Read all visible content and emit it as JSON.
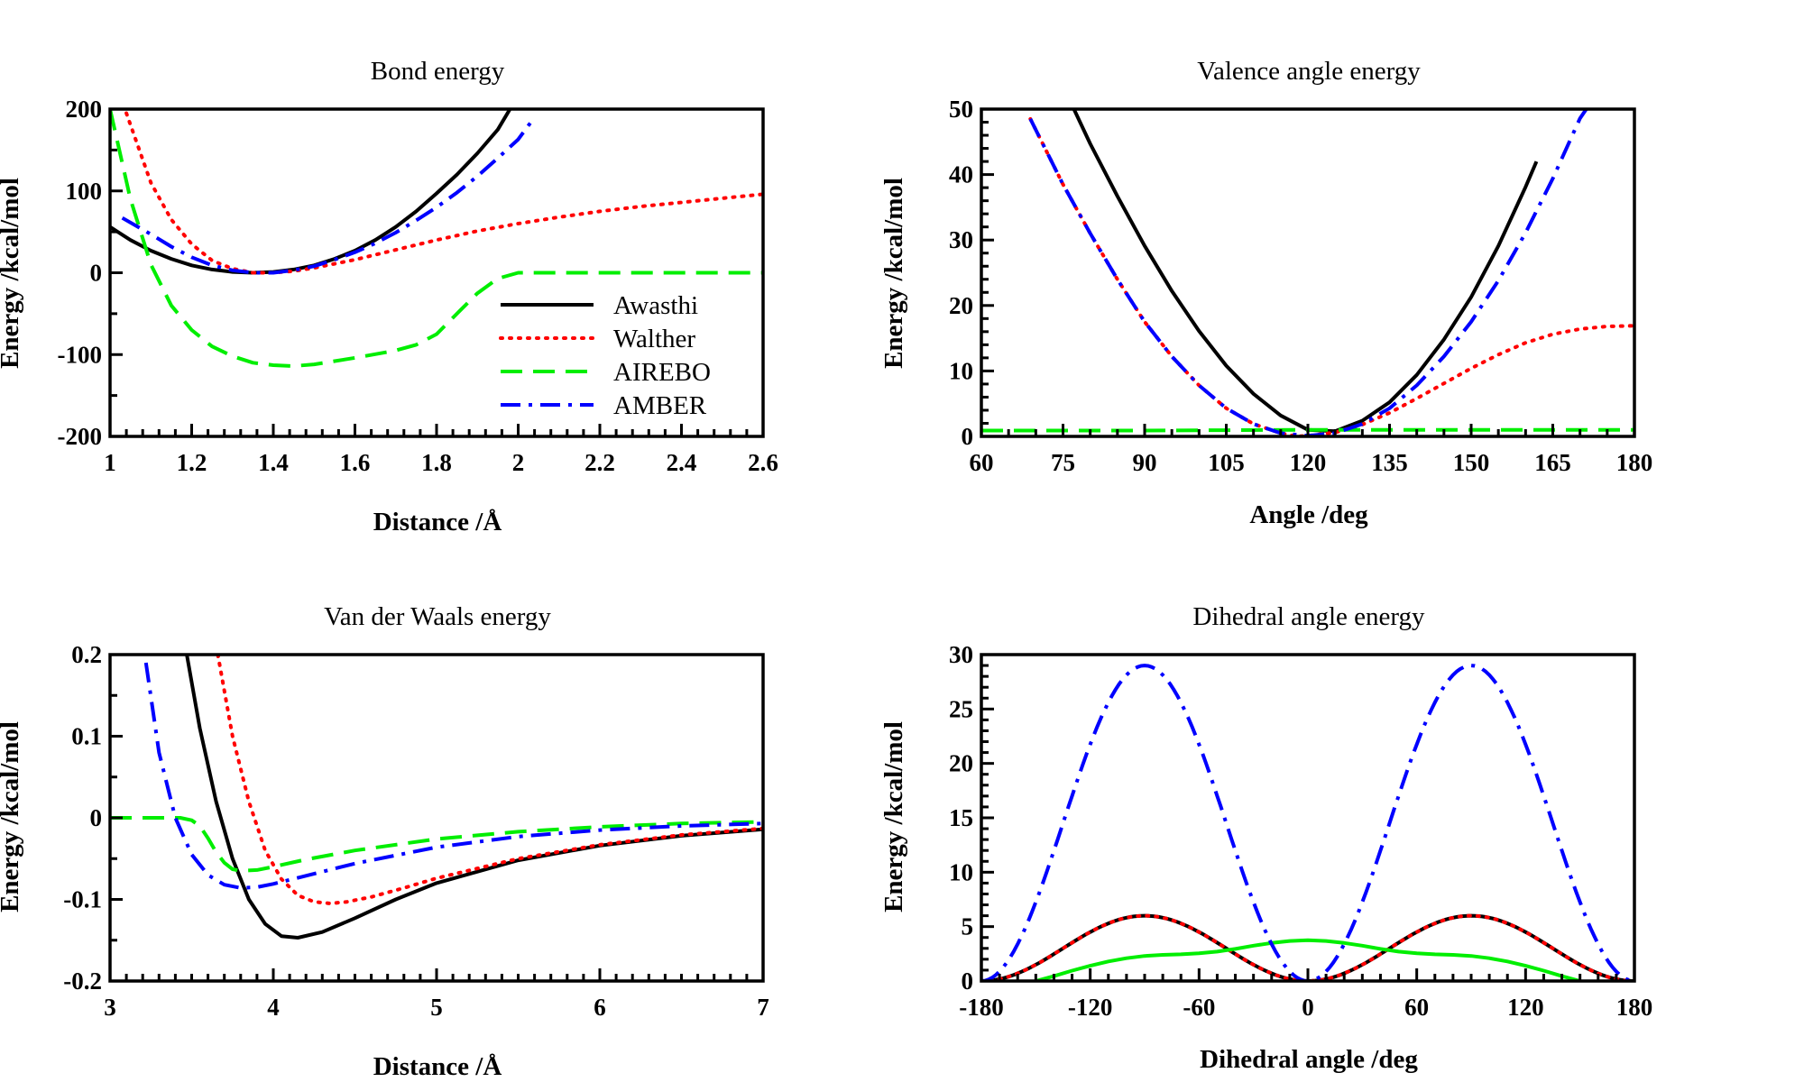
{
  "chart_data": [
    {
      "id": "bond",
      "type": "line",
      "title": "Bond energy",
      "xlabel": "Distance /Å",
      "ylabel": "Energy /kcal/mol",
      "xlim": [
        1,
        2.6
      ],
      "ylim": [
        -200,
        200
      ],
      "xticks": [
        "1",
        "1.2",
        "1.4",
        "1.6",
        "1.8",
        "2",
        "2.2",
        "2.4",
        "2.6"
      ],
      "yticks": [
        "-200",
        "-100",
        "0",
        "100",
        "200"
      ],
      "legend": "inside-right",
      "series": [
        {
          "name": "Awasthi",
          "color": "#000000",
          "dash": "solid",
          "x": [
            1.0,
            1.05,
            1.1,
            1.15,
            1.2,
            1.25,
            1.3,
            1.35,
            1.4,
            1.45,
            1.5,
            1.55,
            1.6,
            1.65,
            1.7,
            1.75,
            1.8,
            1.85,
            1.9,
            1.95,
            1.98
          ],
          "y": [
            56,
            40,
            27,
            17,
            9,
            4,
            1,
            0,
            1,
            4,
            9,
            17,
            27,
            40,
            56,
            75,
            97,
            120,
            146,
            175,
            200
          ]
        },
        {
          "name": "Walther",
          "color": "#ff0000",
          "dash": "dot",
          "x": [
            1.04,
            1.1,
            1.15,
            1.2,
            1.25,
            1.3,
            1.35,
            1.4,
            1.45,
            1.5,
            1.6,
            1.7,
            1.8,
            1.9,
            2.0,
            2.1,
            2.2,
            2.3,
            2.4,
            2.5,
            2.6
          ],
          "y": [
            195,
            110,
            65,
            35,
            15,
            5,
            0,
            0,
            2,
            6,
            16,
            28,
            40,
            51,
            60,
            68,
            75,
            81,
            86,
            91,
            96
          ]
        },
        {
          "name": "AIREBO",
          "color": "#00ee00",
          "dash": "dash",
          "x": [
            1.0,
            1.05,
            1.1,
            1.15,
            1.2,
            1.25,
            1.3,
            1.35,
            1.4,
            1.45,
            1.5,
            1.6,
            1.7,
            1.75,
            1.8,
            1.85,
            1.9,
            1.95,
            2.0,
            2.1,
            2.3,
            2.6
          ],
          "y": [
            200,
            90,
            10,
            -40,
            -70,
            -90,
            -102,
            -110,
            -113,
            -114,
            -112,
            -104,
            -95,
            -88,
            -75,
            -50,
            -25,
            -7,
            0,
            0,
            0,
            0
          ]
        },
        {
          "name": "AMBER",
          "color": "#0000ff",
          "dash": "dashdot",
          "x": [
            1.03,
            1.1,
            1.15,
            1.2,
            1.25,
            1.3,
            1.35,
            1.4,
            1.45,
            1.5,
            1.55,
            1.6,
            1.65,
            1.7,
            1.75,
            1.8,
            1.85,
            1.9,
            1.95,
            2.0,
            2.04
          ],
          "y": [
            67,
            47,
            32,
            19,
            9,
            3,
            0,
            0,
            3,
            8,
            16,
            25,
            36,
            49,
            64,
            80,
            98,
            118,
            140,
            163,
            190
          ]
        }
      ]
    },
    {
      "id": "valence",
      "type": "line",
      "title": "Valence angle energy",
      "xlabel": "Angle /deg",
      "ylabel": "Energy /kcal/mol",
      "xlim": [
        60,
        180
      ],
      "ylim": [
        0,
        50
      ],
      "xticks": [
        "60",
        "75",
        "90",
        "105",
        "120",
        "135",
        "150",
        "165",
        "180"
      ],
      "yticks": [
        "0",
        "10",
        "20",
        "30",
        "40",
        "50"
      ],
      "series": [
        {
          "name": "Awasthi",
          "color": "#000000",
          "dash": "solid",
          "x": [
            77,
            80,
            85,
            90,
            95,
            100,
            105,
            110,
            115,
            120,
            125,
            130,
            135,
            140,
            145,
            150,
            155,
            160,
            162
          ],
          "y": [
            50,
            44.7,
            36.7,
            29.1,
            22.2,
            16.1,
            10.8,
            6.5,
            3.2,
            1.0,
            0.8,
            2.4,
            5.2,
            9.4,
            14.8,
            21.3,
            29.1,
            38.1,
            42.0
          ]
        },
        {
          "name": "Walther",
          "color": "#ff0000",
          "dash": "dot",
          "x": [
            69,
            75,
            80,
            85,
            90,
            95,
            100,
            105,
            110,
            115,
            118,
            120,
            125,
            130,
            135,
            140,
            145,
            150,
            155,
            160,
            165,
            170,
            175,
            180
          ],
          "y": [
            48.5,
            38.5,
            31,
            24,
            17.5,
            12.2,
            7.8,
            4.3,
            1.9,
            0.5,
            0,
            0.1,
            0.6,
            1.8,
            3.6,
            5.8,
            8.1,
            10.4,
            12.5,
            14.3,
            15.6,
            16.4,
            16.8,
            16.9
          ]
        },
        {
          "name": "AIREBO",
          "color": "#00ee00",
          "dash": "dash",
          "x": [
            60,
            90,
            120,
            150,
            180
          ],
          "y": [
            0.9,
            0.9,
            1.0,
            1.0,
            1.0
          ]
        },
        {
          "name": "AMBER",
          "color": "#0000ff",
          "dash": "dashdot",
          "x": [
            69,
            75,
            80,
            85,
            90,
            95,
            100,
            105,
            110,
            115,
            120,
            125,
            130,
            135,
            140,
            145,
            150,
            155,
            160,
            165,
            170,
            172
          ],
          "y": [
            48.5,
            38.5,
            31,
            24,
            17.5,
            12.2,
            7.8,
            4.3,
            1.9,
            0.5,
            0.1,
            0.5,
            1.9,
            4.3,
            7.8,
            12.2,
            17.5,
            23.8,
            31.1,
            39.4,
            48.6,
            51
          ]
        }
      ]
    },
    {
      "id": "vdw",
      "type": "line",
      "title": "Van der Waals energy",
      "xlabel": "Distance /Å",
      "ylabel": "Energy /kcal/mol",
      "xlim": [
        3,
        7
      ],
      "ylim": [
        -0.2,
        0.2
      ],
      "xticks": [
        "3",
        "4",
        "5",
        "6",
        "7"
      ],
      "yticks": [
        "-0.2",
        "-0.1",
        "0",
        "0.1",
        "0.2"
      ],
      "series": [
        {
          "name": "Awasthi",
          "color": "#000000",
          "dash": "solid",
          "x": [
            3.47,
            3.55,
            3.65,
            3.75,
            3.85,
            3.95,
            4.05,
            4.15,
            4.3,
            4.5,
            4.75,
            5.0,
            5.5,
            6.0,
            6.5,
            7.0
          ],
          "y": [
            0.2,
            0.11,
            0.02,
            -0.05,
            -0.1,
            -0.13,
            -0.145,
            -0.147,
            -0.14,
            -0.123,
            -0.1,
            -0.08,
            -0.052,
            -0.034,
            -0.022,
            -0.014
          ]
        },
        {
          "name": "Walther",
          "color": "#ff0000",
          "dash": "dot",
          "x": [
            3.66,
            3.75,
            3.85,
            3.95,
            4.05,
            4.15,
            4.25,
            4.35,
            4.45,
            4.6,
            4.8,
            5.0,
            5.5,
            6.0,
            6.5,
            7.0
          ],
          "y": [
            0.2,
            0.1,
            0.02,
            -0.04,
            -0.075,
            -0.095,
            -0.103,
            -0.105,
            -0.103,
            -0.097,
            -0.086,
            -0.074,
            -0.05,
            -0.033,
            -0.021,
            -0.013
          ]
        },
        {
          "name": "AIREBO",
          "color": "#00ee00",
          "dash": "dash",
          "x": [
            3.0,
            3.3,
            3.43,
            3.5,
            3.55,
            3.6,
            3.65,
            3.7,
            3.75,
            3.8,
            3.9,
            4.0,
            4.2,
            4.5,
            5.0,
            5.5,
            6.0,
            6.5,
            7.0
          ],
          "y": [
            0,
            0,
            0,
            -0.003,
            -0.01,
            -0.025,
            -0.042,
            -0.055,
            -0.063,
            -0.065,
            -0.064,
            -0.06,
            -0.051,
            -0.04,
            -0.026,
            -0.017,
            -0.011,
            -0.007,
            -0.005
          ]
        },
        {
          "name": "AMBER",
          "color": "#0000ff",
          "dash": "dashdot",
          "x": [
            3.22,
            3.3,
            3.4,
            3.5,
            3.6,
            3.7,
            3.8,
            3.9,
            4.0,
            4.2,
            4.5,
            5.0,
            5.5,
            6.0,
            6.5,
            7.0
          ],
          "y": [
            0.19,
            0.08,
            0.0,
            -0.045,
            -0.07,
            -0.082,
            -0.086,
            -0.085,
            -0.081,
            -0.071,
            -0.056,
            -0.036,
            -0.023,
            -0.015,
            -0.01,
            -0.007
          ]
        }
      ]
    },
    {
      "id": "dihedral",
      "type": "line",
      "title": "Dihedral angle energy",
      "xlabel": "Dihedral angle /deg",
      "ylabel": "Energy /kcal/mol",
      "xlim": [
        -180,
        180
      ],
      "ylim": [
        0,
        30
      ],
      "xticks": [
        "-180",
        "-120",
        "-60",
        "0",
        "60",
        "120",
        "180"
      ],
      "yticks": [
        "0",
        "5",
        "10",
        "15",
        "20",
        "25",
        "30"
      ],
      "series": [
        {
          "name": "Awasthi",
          "color": "#000000",
          "dash": "solid",
          "formula": "a*sin2",
          "amplitude": 6.0
        },
        {
          "name": "Walther",
          "color": "#ff0000",
          "dash": "dot",
          "formula": "a*sin2",
          "amplitude": 6.0
        },
        {
          "name": "AIREBO",
          "color": "#00ee00",
          "dash": "solid",
          "x": [
            -150,
            -140,
            -130,
            -120,
            -110,
            -100,
            -90,
            -80,
            -70,
            -60,
            -50,
            -40,
            -30,
            -20,
            -10,
            0,
            10,
            20,
            30,
            40,
            50,
            60,
            70,
            80,
            90,
            100,
            110,
            120,
            130,
            140,
            150
          ],
          "y": [
            0,
            0.45,
            0.95,
            1.4,
            1.8,
            2.1,
            2.3,
            2.4,
            2.45,
            2.55,
            2.7,
            2.95,
            3.25,
            3.5,
            3.68,
            3.75,
            3.68,
            3.5,
            3.25,
            2.95,
            2.7,
            2.55,
            2.45,
            2.4,
            2.3,
            2.1,
            1.8,
            1.4,
            0.95,
            0.45,
            0
          ]
        },
        {
          "name": "AMBER",
          "color": "#0000ff",
          "dash": "dashdot",
          "formula": "a*sin2",
          "amplitude": 29.0
        }
      ]
    }
  ]
}
